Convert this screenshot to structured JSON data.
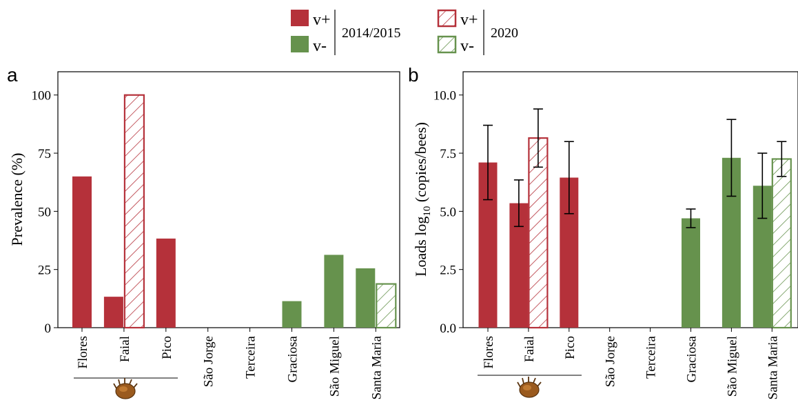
{
  "legend": {
    "groups": [
      {
        "period": "2014/2015",
        "items": [
          {
            "label": "v+",
            "color": "#b5313a",
            "hatched": false
          },
          {
            "label": "v-",
            "color": "#66924d",
            "hatched": false
          }
        ]
      },
      {
        "period": "2020",
        "items": [
          {
            "label": "v+",
            "color": "#b5313a",
            "hatched": true
          },
          {
            "label": "v-",
            "color": "#66924d",
            "hatched": true
          }
        ]
      }
    ]
  },
  "colors": {
    "v_plus": "#b5313a",
    "v_minus": "#66924d"
  },
  "icons": {
    "varroa_mite": "varroa-mite-icon"
  },
  "chart_data": [
    {
      "panel": "a",
      "type": "bar",
      "categories": [
        "Flores",
        "Faial",
        "Pico",
        "São Jorge",
        "Terceira",
        "Graciosa",
        "São Miguel",
        "Santa Maria"
      ],
      "ylabel": "Prevalence (%)",
      "xlabel": "",
      "ylim": [
        0,
        110
      ],
      "yticks": [
        0,
        25,
        50,
        75,
        100
      ],
      "bracket_categories": [
        "Flores",
        "Faial",
        "Pico"
      ],
      "series": [
        {
          "period": "2014/2015",
          "values": [
            65,
            13.3,
            38.3,
            0,
            0,
            11.4,
            31.3,
            25.5
          ],
          "status": [
            "v+",
            "v+",
            "v+",
            null,
            null,
            "v-",
            "v-",
            "v-"
          ]
        },
        {
          "period": "2020",
          "values": [
            null,
            100,
            null,
            null,
            null,
            null,
            null,
            18.8
          ],
          "status": [
            null,
            "v+",
            null,
            null,
            null,
            null,
            null,
            "v-"
          ]
        }
      ]
    },
    {
      "panel": "b",
      "type": "bar",
      "categories": [
        "Flores",
        "Faial",
        "Pico",
        "São Jorge",
        "Terceira",
        "Graciosa",
        "São Miguel",
        "Santa Maria"
      ],
      "ylabel": "Loads log10 (copies/bees)",
      "xlabel": "",
      "ylim": [
        0,
        11
      ],
      "yticks": [
        "0.0",
        "2.5",
        "5.0",
        "7.5",
        "10.0"
      ],
      "bracket_categories": [
        "Flores",
        "Faial",
        "Pico"
      ],
      "series": [
        {
          "period": "2014/2015",
          "values": [
            7.1,
            5.35,
            6.45,
            null,
            null,
            4.7,
            7.3,
            6.1
          ],
          "error": [
            [
              5.5,
              8.7
            ],
            [
              4.35,
              6.35
            ],
            [
              4.9,
              8.0
            ],
            null,
            null,
            [
              4.3,
              5.1
            ],
            [
              5.65,
              8.95
            ],
            [
              4.7,
              7.5
            ]
          ],
          "status": [
            "v+",
            "v+",
            "v+",
            null,
            null,
            "v-",
            "v-",
            "v-"
          ]
        },
        {
          "period": "2020",
          "values": [
            null,
            8.15,
            null,
            null,
            null,
            null,
            null,
            7.25
          ],
          "error": [
            null,
            [
              6.9,
              9.4
            ],
            null,
            null,
            null,
            null,
            null,
            [
              6.5,
              8.0
            ]
          ],
          "status": [
            null,
            "v+",
            null,
            null,
            null,
            null,
            null,
            "v-"
          ]
        }
      ]
    }
  ]
}
